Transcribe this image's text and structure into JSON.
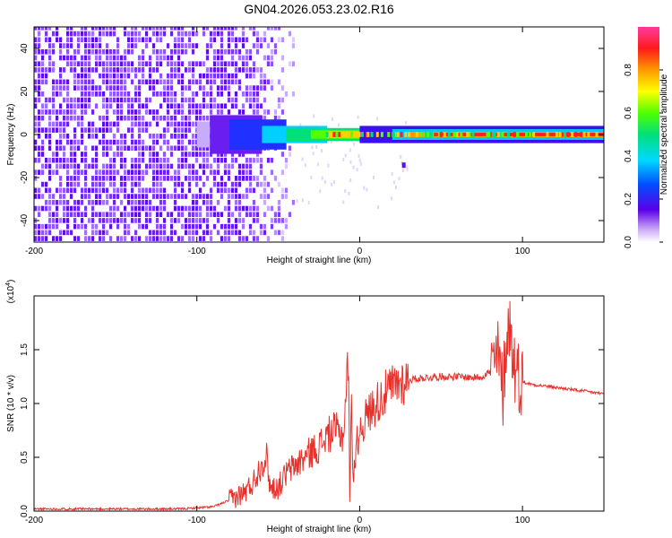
{
  "title": "GN04.2026.053.23.02.R16",
  "chart_data": [
    {
      "type": "heatmap",
      "xlabel": "Height of straight line (km)",
      "ylabel": "Frequency (Hz)",
      "xlim": [
        -200,
        150
      ],
      "ylim": [
        -50,
        50
      ],
      "xticks": [
        -200,
        -100,
        0,
        100
      ],
      "yticks": [
        -40,
        -20,
        0,
        20,
        40
      ],
      "colorbar": {
        "label": "Normalized spectral amplitude",
        "ticks": [
          "0.0",
          "0.2",
          "0.4",
          "0.6",
          "0.8"
        ],
        "range": [
          0,
          1
        ]
      },
      "grid": false
    },
    {
      "type": "line",
      "xlabel": "Height of straight line (km)",
      "ylabel": "SNR (10 * v/v)",
      "multiplier_label": "(x10",
      "multiplier_exp": "4",
      "multiplier_close": ")",
      "xlim": [
        -200,
        150
      ],
      "ylim": [
        0,
        2.0
      ],
      "xticks": [
        -200,
        -100,
        0,
        100
      ],
      "yticks": [
        "0.0",
        "0.5",
        "1.0",
        "1.5"
      ],
      "series": [
        {
          "color": "#e8312b",
          "x": [
            -200,
            -150,
            -110,
            -90,
            -80,
            -70,
            -65,
            -60,
            -57,
            -55,
            -50,
            -45,
            -40,
            -35,
            -30,
            -25,
            -20,
            -15,
            -10,
            -7,
            -6,
            -5,
            -4,
            -2,
            0,
            5,
            10,
            15,
            20,
            25,
            30,
            40,
            50,
            60,
            70,
            75,
            80,
            85,
            88,
            90,
            92,
            94,
            96,
            100,
            105,
            110,
            120,
            130,
            140,
            150
          ],
          "y": [
            0.02,
            0.02,
            0.02,
            0.04,
            0.1,
            0.18,
            0.28,
            0.45,
            0.5,
            0.22,
            0.22,
            0.35,
            0.42,
            0.48,
            0.55,
            0.6,
            0.7,
            0.75,
            0.7,
            1.45,
            0.05,
            1.1,
            0.3,
            0.6,
            0.75,
            0.9,
            1.0,
            1.08,
            1.15,
            1.2,
            1.22,
            1.24,
            1.25,
            1.25,
            1.24,
            1.25,
            1.3,
            1.45,
            1.1,
            1.6,
            1.75,
            1.45,
            1.3,
            1.2,
            1.18,
            1.17,
            1.15,
            1.13,
            1.11,
            1.09
          ]
        }
      ],
      "grid": false
    }
  ]
}
